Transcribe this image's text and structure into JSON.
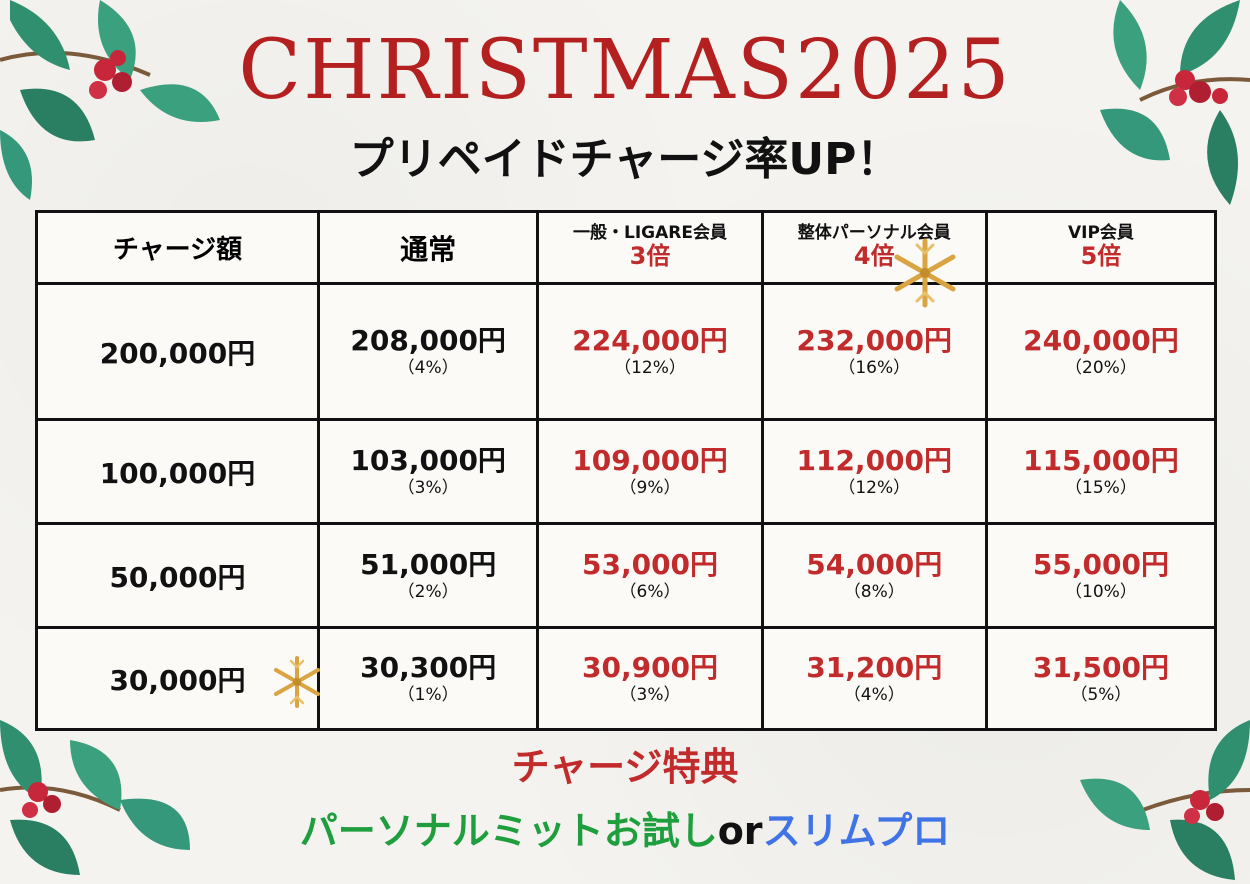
{
  "title": "CHRISTMAS2025",
  "subtitle": "プリペイドチャージ率UP！",
  "table": {
    "headers": {
      "amount": "チャージ額",
      "normal": "通常",
      "tier1": {
        "name": "一般・LIGARE会員",
        "mult": "3倍"
      },
      "tier2": {
        "name": "整体パーソナル会員",
        "mult": "4倍"
      },
      "tier3": {
        "name": "VIP会員",
        "mult": "5倍"
      }
    },
    "rows": [
      {
        "amount": "200,000円",
        "normal": "208,000円",
        "normal_pct": "（4%）",
        "t1": "224,000円",
        "t1_pct": "（12%）",
        "t2": "232,000円",
        "t2_pct": "（16%）",
        "t3": "240,000円",
        "t3_pct": "（20%）"
      },
      {
        "amount": "100,000円",
        "normal": "103,000円",
        "normal_pct": "（3%）",
        "t1": "109,000円",
        "t1_pct": "（9%）",
        "t2": "112,000円",
        "t2_pct": "（12%）",
        "t3": "115,000円",
        "t3_pct": "（15%）"
      },
      {
        "amount": "50,000円",
        "normal": "51,000円",
        "normal_pct": "（2%）",
        "t1": "53,000円",
        "t1_pct": "（6%）",
        "t2": "54,000円",
        "t2_pct": "（8%）",
        "t3": "55,000円",
        "t3_pct": "（10%）"
      },
      {
        "amount": "30,000円",
        "normal": "30,300円",
        "normal_pct": "（1%）",
        "t1": "30,900円",
        "t1_pct": "（3%）",
        "t2": "31,200円",
        "t2_pct": "（4%）",
        "t3": "31,500円",
        "t3_pct": "（5%）"
      }
    ]
  },
  "perk": {
    "title": "チャージ特典",
    "option_a": "パーソナルミットお試し",
    "or": "or",
    "option_b": "スリムプロ"
  },
  "colors": {
    "accent_red": "#c22b2b",
    "green": "#1f9e3e",
    "blue": "#3f73e6",
    "holly": "#2f8f6f",
    "berry": "#c8263a",
    "gold": "#d9a441"
  },
  "icons": {
    "decor": [
      "holly-icon",
      "snowflake-icon"
    ]
  }
}
